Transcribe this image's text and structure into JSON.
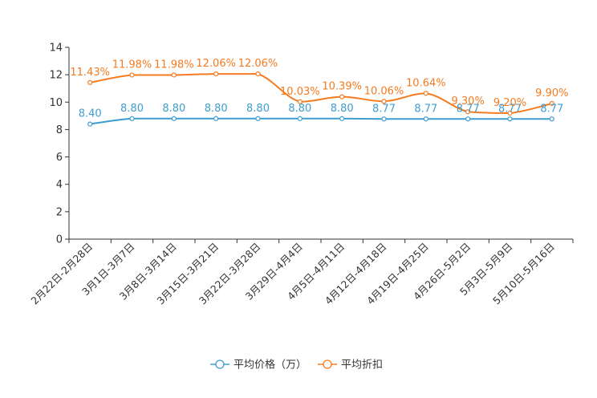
{
  "chart_data": {
    "type": "line",
    "categories": [
      "2月22日-2月28日",
      "3月1日-3月7日",
      "3月8日-3月14日",
      "3月15日-3月21日",
      "3月22日-3月28日",
      "3月29日-4月4日",
      "4月5日-4月11日",
      "4月12日-4月18日",
      "4月19日-4月25日",
      "4月26日-5月2日",
      "5月3日-5月9日",
      "5月10日-5月16日"
    ],
    "ylim": [
      0,
      14
    ],
    "yticks": [
      0,
      2,
      4,
      6,
      8,
      10,
      12,
      14
    ],
    "grid": false,
    "legend_position": "bottom-center",
    "series": [
      {
        "name": "平均价格（万）",
        "color": "#3e9dd0",
        "values": [
          8.4,
          8.8,
          8.8,
          8.8,
          8.8,
          8.8,
          8.8,
          8.77,
          8.77,
          8.77,
          8.77,
          8.77
        ],
        "labels": [
          "8.40",
          "8.80",
          "8.80",
          "8.80",
          "8.80",
          "8.80",
          "8.80",
          "8.77",
          "8.77",
          "8.77",
          "8.77",
          "8.77"
        ]
      },
      {
        "name": "平均折扣",
        "color": "#f47b20",
        "values": [
          11.43,
          11.98,
          11.98,
          12.06,
          12.06,
          10.03,
          10.39,
          10.06,
          10.64,
          9.3,
          9.2,
          9.9
        ],
        "labels": [
          "11.43%",
          "11.98%",
          "11.98%",
          "12.06%",
          "12.06%",
          "10.03%",
          "10.39%",
          "10.06%",
          "10.64%",
          "9.30%",
          "9.20%",
          "9.90%"
        ]
      }
    ]
  }
}
